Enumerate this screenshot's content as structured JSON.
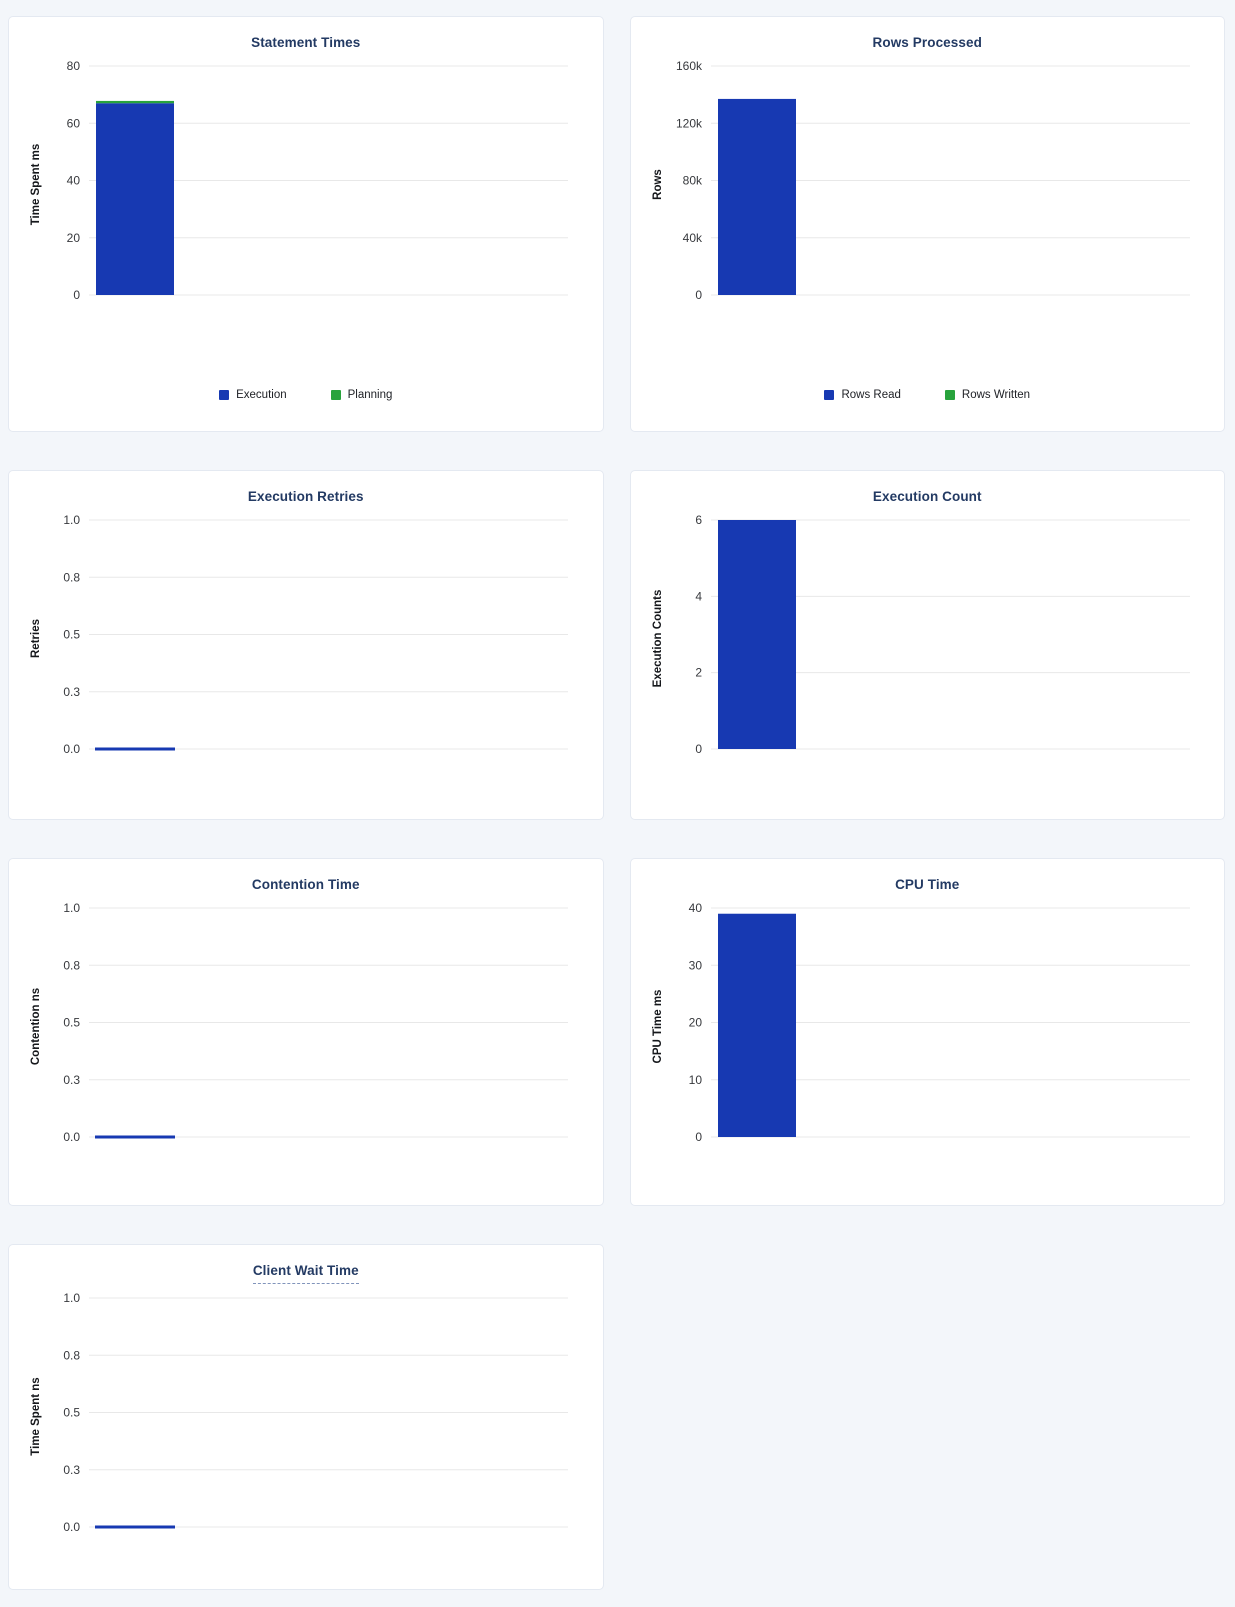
{
  "style": {
    "page_background": "#f3f6fa",
    "card_background": "#ffffff",
    "card_border": "#e4e9f1",
    "title_color": "#233a63",
    "gridline_color": "#e8e8e8",
    "tick_color": "#37393d",
    "axis_label_color": "#15171b",
    "legend_text_color": "#202227",
    "bar_blue": "#1739B2",
    "bar_green": "#28A33C",
    "title_underline_color": "#8194bb"
  },
  "chart_data": [
    {
      "type": "bar",
      "title": "Statement Times",
      "ylabel": "Time Spent ms",
      "ylim": [
        0,
        80
      ],
      "grid": true,
      "legend_position": "bottom",
      "show_legend": true,
      "title_underlined": false,
      "yticks": [
        {
          "v": 0,
          "label": "0"
        },
        {
          "v": 20,
          "label": "20"
        },
        {
          "v": 40,
          "label": "40"
        },
        {
          "v": 60,
          "label": "60"
        },
        {
          "v": 80,
          "label": "80"
        }
      ],
      "series": [
        {
          "name": "Execution",
          "color": "#1739B2",
          "value": 67
        },
        {
          "name": "Planning",
          "color": "#28A33C",
          "value": 0.8
        }
      ]
    },
    {
      "type": "bar",
      "title": "Rows Processed",
      "ylabel": "Rows",
      "ylim": [
        0,
        160000
      ],
      "grid": true,
      "legend_position": "bottom",
      "show_legend": true,
      "title_underlined": false,
      "yticks": [
        {
          "v": 0,
          "label": "0"
        },
        {
          "v": 40000,
          "label": "40k"
        },
        {
          "v": 80000,
          "label": "80k"
        },
        {
          "v": 120000,
          "label": "120k"
        },
        {
          "v": 160000,
          "label": "160k"
        }
      ],
      "series": [
        {
          "name": "Rows Read",
          "color": "#1739B2",
          "value": 137000
        },
        {
          "name": "Rows Written",
          "color": "#28A33C",
          "value": 0
        }
      ]
    },
    {
      "type": "bar",
      "title": "Execution Retries",
      "ylabel": "Retries",
      "ylim": [
        0,
        1
      ],
      "grid": true,
      "legend_position": "none",
      "show_legend": false,
      "title_underlined": false,
      "yticks": [
        {
          "v": 0,
          "label": "0.0"
        },
        {
          "v": 0.25,
          "label": "0.3"
        },
        {
          "v": 0.5,
          "label": "0.5"
        },
        {
          "v": 0.75,
          "label": "0.8"
        },
        {
          "v": 1,
          "label": "1.0"
        }
      ],
      "series": [
        {
          "name": "Retries",
          "color": "#1739B2",
          "value": 0
        }
      ]
    },
    {
      "type": "bar",
      "title": "Execution Count",
      "ylabel": "Execution Counts",
      "ylim": [
        0,
        6
      ],
      "grid": true,
      "legend_position": "none",
      "show_legend": false,
      "title_underlined": false,
      "yticks": [
        {
          "v": 0,
          "label": "0"
        },
        {
          "v": 2,
          "label": "2"
        },
        {
          "v": 4,
          "label": "4"
        },
        {
          "v": 6,
          "label": "6"
        }
      ],
      "series": [
        {
          "name": "Execution Count",
          "color": "#1739B2",
          "value": 6
        }
      ]
    },
    {
      "type": "bar",
      "title": "Contention Time",
      "ylabel": "Contention ns",
      "ylim": [
        0,
        1
      ],
      "grid": true,
      "legend_position": "none",
      "show_legend": false,
      "title_underlined": false,
      "yticks": [
        {
          "v": 0,
          "label": "0.0"
        },
        {
          "v": 0.25,
          "label": "0.3"
        },
        {
          "v": 0.5,
          "label": "0.5"
        },
        {
          "v": 0.75,
          "label": "0.8"
        },
        {
          "v": 1,
          "label": "1.0"
        }
      ],
      "series": [
        {
          "name": "Contention",
          "color": "#1739B2",
          "value": 0
        }
      ]
    },
    {
      "type": "bar",
      "title": "CPU Time",
      "ylabel": "CPU Time ms",
      "ylim": [
        0,
        40
      ],
      "grid": true,
      "legend_position": "none",
      "show_legend": false,
      "title_underlined": false,
      "yticks": [
        {
          "v": 0,
          "label": "0"
        },
        {
          "v": 10,
          "label": "10"
        },
        {
          "v": 20,
          "label": "20"
        },
        {
          "v": 30,
          "label": "30"
        },
        {
          "v": 40,
          "label": "40"
        }
      ],
      "series": [
        {
          "name": "CPU Time",
          "color": "#1739B2",
          "value": 39
        }
      ]
    },
    {
      "type": "bar",
      "title": "Client Wait Time",
      "ylabel": "Time Spent ns",
      "ylim": [
        0,
        1
      ],
      "grid": true,
      "legend_position": "none",
      "show_legend": false,
      "title_underlined": true,
      "yticks": [
        {
          "v": 0,
          "label": "0.0"
        },
        {
          "v": 0.25,
          "label": "0.3"
        },
        {
          "v": 0.5,
          "label": "0.5"
        },
        {
          "v": 0.75,
          "label": "0.8"
        },
        {
          "v": 1,
          "label": "1.0"
        }
      ],
      "series": [
        {
          "name": "Client Wait",
          "color": "#1739B2",
          "value": 0
        }
      ]
    }
  ]
}
